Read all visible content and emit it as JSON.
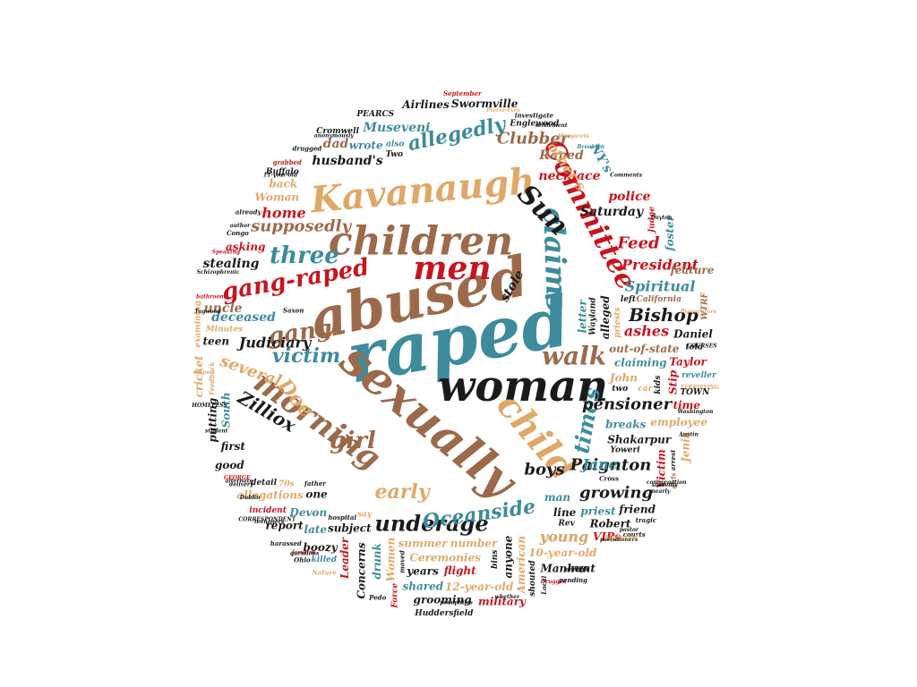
{
  "palette": {
    "black": "#1a1a1a",
    "teal": "#3d8b9c",
    "brown": "#9c6a4a",
    "tan": "#e0a868",
    "red": "#c8141e"
  },
  "words": [
    {
      "text": "raped",
      "color": "teal"
    },
    {
      "text": "abused",
      "color": "brown"
    },
    {
      "text": "woman",
      "color": "black"
    },
    {
      "text": "sexually",
      "color": "brown"
    },
    {
      "text": "children",
      "color": "brown"
    },
    {
      "text": "Kavanaugh",
      "color": "tan"
    },
    {
      "text": "men",
      "color": "red"
    },
    {
      "text": "child",
      "color": "tan"
    },
    {
      "text": "Committee",
      "color": "red"
    },
    {
      "text": "claims",
      "color": "teal"
    },
    {
      "text": "Sun",
      "color": "black"
    },
    {
      "text": "morning",
      "color": "brown"
    },
    {
      "text": "gang-raped",
      "color": "red"
    },
    {
      "text": "three",
      "color": "teal"
    },
    {
      "text": "gang",
      "color": "brown"
    },
    {
      "text": "victim",
      "color": "teal"
    },
    {
      "text": "walk",
      "color": "brown"
    },
    {
      "text": "times",
      "color": "teal"
    },
    {
      "text": "Doe",
      "color": "tan"
    },
    {
      "text": "girl",
      "color": "brown"
    },
    {
      "text": "early",
      "color": "tan"
    },
    {
      "text": "underage",
      "color": "black"
    },
    {
      "text": "Oceanside",
      "color": "teal"
    },
    {
      "text": "allegedly",
      "color": "teal"
    },
    {
      "text": "Bishop",
      "color": "black"
    },
    {
      "text": "Zilliox",
      "color": "black"
    },
    {
      "text": "several",
      "color": "tan"
    },
    {
      "text": "Paignton",
      "color": "black"
    },
    {
      "text": "boys",
      "color": "black"
    },
    {
      "text": "growing",
      "color": "black"
    },
    {
      "text": "Jane",
      "color": "teal"
    },
    {
      "text": "young",
      "color": "teal"
    },
    {
      "text": "pensioner",
      "color": "black"
    },
    {
      "text": "supposedly",
      "color": "brown"
    },
    {
      "text": "Feed",
      "color": "red"
    },
    {
      "text": "Clubber",
      "color": "brown"
    },
    {
      "text": "home",
      "color": "red"
    },
    {
      "text": "ashes",
      "color": "red"
    },
    {
      "text": "Spiritual",
      "color": "teal"
    },
    {
      "text": "President",
      "color": "red"
    },
    {
      "text": "Judiciary",
      "color": "black"
    },
    {
      "text": "uncle",
      "color": "brown"
    },
    {
      "text": "deceased",
      "color": "teal"
    },
    {
      "text": "stealing",
      "color": "black"
    },
    {
      "text": "stole",
      "color": "black"
    },
    {
      "text": "dad",
      "color": "brown"
    },
    {
      "text": "husband's",
      "color": "black"
    },
    {
      "text": "Museveni",
      "color": "teal"
    },
    {
      "text": "Raped",
      "color": "brown"
    },
    {
      "text": "necklace",
      "color": "red"
    },
    {
      "text": "other's",
      "color": "tan"
    },
    {
      "text": "NY's",
      "color": "teal"
    },
    {
      "text": "Saturday",
      "color": "black"
    },
    {
      "text": "police",
      "color": "red"
    },
    {
      "text": "feature",
      "color": "brown"
    },
    {
      "text": "out-of-state",
      "color": "brown"
    },
    {
      "text": "alleged",
      "color": "black"
    },
    {
      "text": "summer",
      "color": "tan"
    },
    {
      "text": "letter",
      "color": "teal"
    },
    {
      "text": "claiming",
      "color": "teal"
    },
    {
      "text": "John",
      "color": "tan"
    },
    {
      "text": "number",
      "color": "tan"
    },
    {
      "text": "man",
      "color": "teal"
    },
    {
      "text": "line",
      "color": "black"
    },
    {
      "text": "one",
      "color": "black"
    },
    {
      "text": "Women",
      "color": "tan"
    },
    {
      "text": "Ceremonies",
      "color": "tan"
    },
    {
      "text": "American",
      "color": "tan"
    },
    {
      "text": "breaks",
      "color": "teal"
    },
    {
      "text": "subject",
      "color": "black"
    },
    {
      "text": "Shakarpur",
      "color": "black"
    },
    {
      "text": "Stip",
      "color": "red"
    },
    {
      "text": "Devon",
      "color": "teal"
    },
    {
      "text": "priest",
      "color": "teal"
    },
    {
      "text": "drunk",
      "color": "teal"
    },
    {
      "text": "10-year-old",
      "color": "tan"
    },
    {
      "text": "Concerns",
      "color": "black"
    },
    {
      "text": "flight",
      "color": "red"
    },
    {
      "text": "allegations",
      "color": "tan"
    },
    {
      "text": "12-year-old",
      "color": "tan"
    },
    {
      "text": "late",
      "color": "teal"
    },
    {
      "text": "Leader",
      "color": "red"
    },
    {
      "text": "wrote",
      "color": "teal"
    },
    {
      "text": "anyone",
      "color": "black"
    },
    {
      "text": "Daniel",
      "color": "black"
    },
    {
      "text": "employee",
      "color": "tan"
    },
    {
      "text": "shared",
      "color": "teal"
    },
    {
      "text": "Woman",
      "color": "tan"
    },
    {
      "text": "Manhunt",
      "color": "black"
    },
    {
      "text": "boozy",
      "color": "black"
    },
    {
      "text": "grooming",
      "color": "black"
    },
    {
      "text": "Airlines",
      "color": "black"
    },
    {
      "text": "Swormville",
      "color": "black"
    },
    {
      "text": "Robert",
      "color": "black"
    },
    {
      "text": "military",
      "color": "red"
    },
    {
      "text": "asking",
      "color": "red"
    },
    {
      "text": "whether",
      "color": "black"
    },
    {
      "text": "years",
      "color": "black"
    },
    {
      "text": "first",
      "color": "black"
    },
    {
      "text": "teen",
      "color": "black"
    },
    {
      "text": "time",
      "color": "red"
    },
    {
      "text": "report",
      "color": "black"
    },
    {
      "text": "Comments",
      "color": "black"
    },
    {
      "text": "pastor",
      "color": "black"
    },
    {
      "text": "Taylor",
      "color": "red"
    },
    {
      "text": "VIPs",
      "color": "red"
    },
    {
      "text": "Jenik",
      "color": "tan"
    },
    {
      "text": "friend",
      "color": "black"
    },
    {
      "text": "back",
      "color": "tan"
    },
    {
      "text": "Washington",
      "color": "black"
    },
    {
      "text": "South",
      "color": "teal"
    },
    {
      "text": "Brooklyn",
      "color": "teal"
    },
    {
      "text": "putting",
      "color": "black"
    },
    {
      "text": "Report",
      "color": "tan"
    },
    {
      "text": "Victim",
      "color": "red"
    },
    {
      "text": "good",
      "color": "black"
    },
    {
      "text": "many",
      "color": "black"
    },
    {
      "text": "foster",
      "color": "teal"
    },
    {
      "text": "cricket",
      "color": "tan"
    },
    {
      "text": "alternate",
      "color": "black"
    },
    {
      "text": "bins",
      "color": "black"
    },
    {
      "text": "two",
      "color": "black"
    },
    {
      "text": "70s",
      "color": "tan"
    },
    {
      "text": "left",
      "color": "black"
    },
    {
      "text": "detail",
      "color": "black"
    },
    {
      "text": "Force",
      "color": "red"
    },
    {
      "text": "priests",
      "color": "tan"
    },
    {
      "text": "shouted",
      "color": "black"
    },
    {
      "text": "examining",
      "color": "tan"
    },
    {
      "text": "told",
      "color": "black"
    },
    {
      "text": "say",
      "color": "tan"
    },
    {
      "text": "car",
      "color": "tan"
    },
    {
      "text": "kids",
      "color": "black"
    },
    {
      "text": "reveller",
      "color": "teal"
    },
    {
      "text": "also",
      "color": "teal"
    },
    {
      "text": "Two",
      "color": "black"
    },
    {
      "text": "Yoweri",
      "color": "black"
    },
    {
      "text": "Rev",
      "color": "black"
    },
    {
      "text": "Minutes",
      "color": "tan"
    },
    {
      "text": "incident",
      "color": "red"
    },
    {
      "text": "killed",
      "color": "teal"
    },
    {
      "text": "Prosecutors",
      "color": "tan"
    },
    {
      "text": "Cromwell",
      "color": "black"
    },
    {
      "text": "Pierre-Yves",
      "color": "tan"
    },
    {
      "text": "Buffalo",
      "color": "black"
    },
    {
      "text": "Huddersfield",
      "color": "black"
    },
    {
      "text": "HOMELESS",
      "color": "black"
    },
    {
      "text": "California",
      "color": "brown"
    },
    {
      "text": "Judge",
      "color": "red"
    },
    {
      "text": "Wayland",
      "color": "black"
    },
    {
      "text": "TERRIFYING",
      "color": "tan"
    },
    {
      "text": "Englewood",
      "color": "black"
    },
    {
      "text": "Drugged",
      "color": "red"
    },
    {
      "text": "PEARCS",
      "color": "black"
    },
    {
      "text": "Dayton",
      "color": "black"
    },
    {
      "text": "Margarets",
      "color": "tan"
    },
    {
      "text": "GEORGE",
      "color": "red"
    },
    {
      "text": "TOWN",
      "color": "black"
    },
    {
      "text": "WTRF",
      "color": "brown"
    },
    {
      "text": "Dublin",
      "color": "black"
    },
    {
      "text": "September",
      "color": "red"
    },
    {
      "text": "arrest",
      "color": "black"
    },
    {
      "text": "Schizophrenic",
      "color": "black"
    },
    {
      "text": "Cross",
      "color": "black"
    },
    {
      "text": "investigate",
      "color": "black"
    },
    {
      "text": "Nature",
      "color": "tan"
    },
    {
      "text": "Local",
      "color": "black"
    },
    {
      "text": "bathroom",
      "color": "red"
    },
    {
      "text": "hospital",
      "color": "black"
    },
    {
      "text": "young",
      "color": "tan"
    },
    {
      "text": "Congo",
      "color": "black"
    },
    {
      "text": "11-year-old",
      "color": "black"
    },
    {
      "text": "teenagers",
      "color": "black"
    },
    {
      "text": "delivery",
      "color": "black"
    },
    {
      "text": "parishioners",
      "color": "black"
    },
    {
      "text": "pending",
      "color": "black"
    },
    {
      "text": "forward",
      "color": "red"
    },
    {
      "text": "Pedo",
      "color": "black"
    },
    {
      "text": "harassed",
      "color": "black"
    },
    {
      "text": "courts",
      "color": "black"
    },
    {
      "text": "kidnapped",
      "color": "tan"
    },
    {
      "text": "drugged",
      "color": "black"
    },
    {
      "text": "grabbed",
      "color": "red"
    },
    {
      "text": "Speaking",
      "color": "red"
    },
    {
      "text": "girls",
      "color": "brown"
    },
    {
      "text": "Tagwood",
      "color": "black"
    },
    {
      "text": "CORRESPONDENT",
      "color": "black"
    },
    {
      "text": "Feedback",
      "color": "tan"
    },
    {
      "text": "Saxon",
      "color": "black"
    },
    {
      "text": "student",
      "color": "black"
    },
    {
      "text": "congregation",
      "color": "black"
    },
    {
      "text": "pedophiles",
      "color": "black"
    },
    {
      "text": "questions",
      "color": "black"
    },
    {
      "text": "settlement",
      "color": "black"
    },
    {
      "text": "Austin",
      "color": "black"
    },
    {
      "text": "Ohio",
      "color": "black"
    },
    {
      "text": "tragic",
      "color": "black"
    },
    {
      "text": "already",
      "color": "black"
    },
    {
      "text": "author",
      "color": "black"
    },
    {
      "text": "nearly",
      "color": "black"
    },
    {
      "text": "moved",
      "color": "black"
    },
    {
      "text": "father",
      "color": "black"
    },
    {
      "text": "students",
      "color": "black"
    },
    {
      "text": "anonymously",
      "color": "black"
    },
    {
      "text": "enough",
      "color": "black"
    },
    {
      "text": "COURSES",
      "color": "black"
    }
  ]
}
